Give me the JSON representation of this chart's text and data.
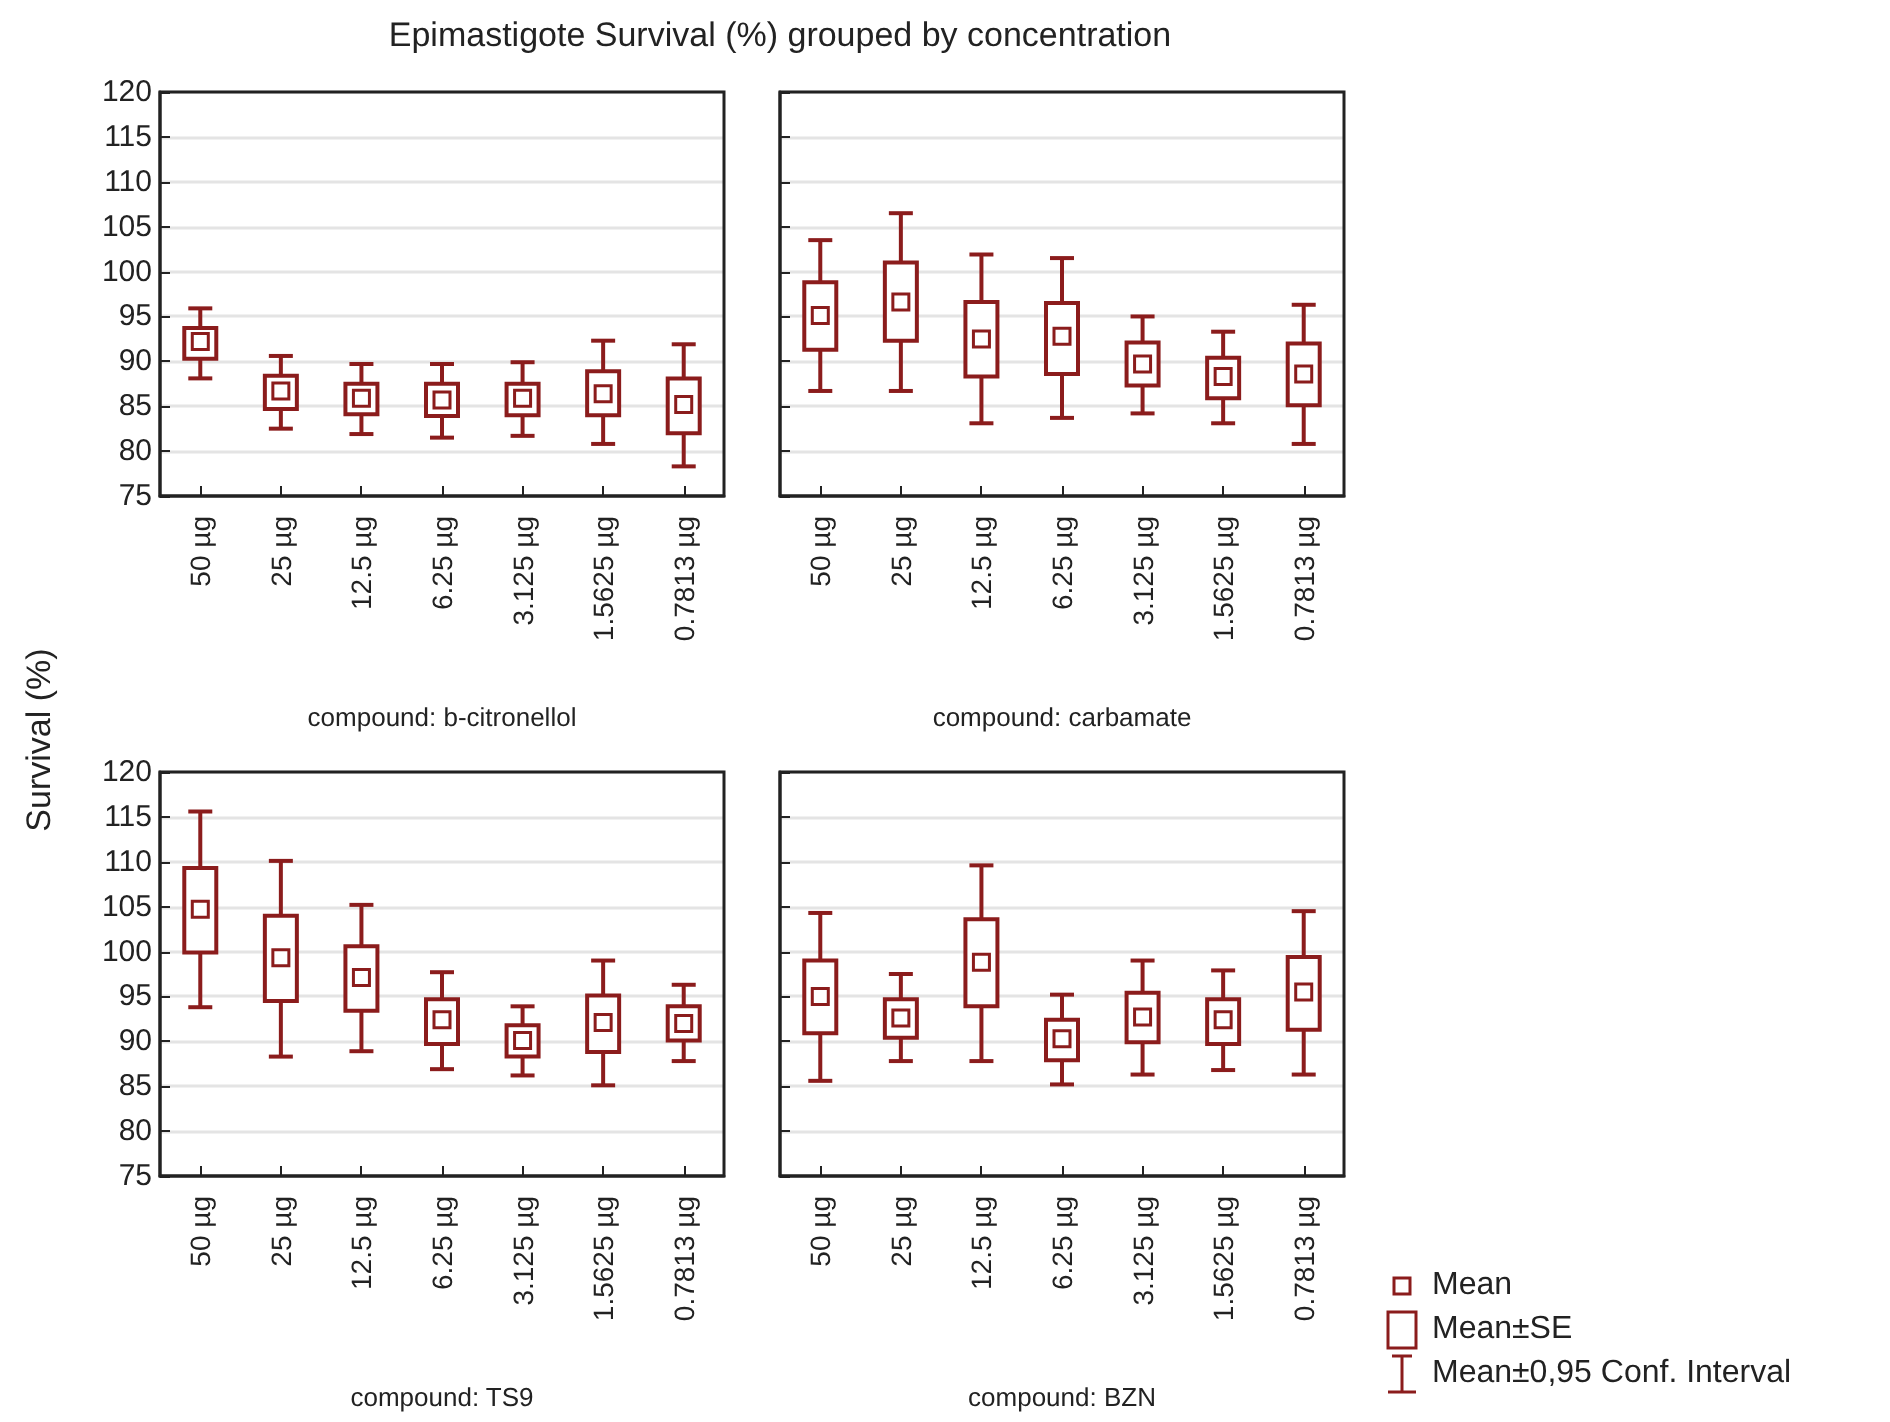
{
  "chart_data": [
    {
      "type": "box",
      "title": "Epimastigote Survival (%) grouped by concentration",
      "ylabel": "Survival (%)",
      "xlabel": "compound: b-citronellol",
      "categories": [
        "50 µg",
        "25 µg",
        "12.5 µg",
        "6.25 µg",
        "3.125 µg",
        "1.5625 µg",
        "0.7813 µg"
      ],
      "color": "#8b1c1c",
      "ylim": [
        75,
        120
      ],
      "yticks": [
        75,
        80,
        85,
        90,
        95,
        100,
        105,
        110,
        115,
        120
      ],
      "grid": "y",
      "boxes": [
        {
          "low": 88.1,
          "q1": 90.3,
          "median": 92.2,
          "q3": 93.7,
          "high": 95.9
        },
        {
          "low": 82.5,
          "q1": 84.7,
          "median": 86.7,
          "q3": 88.4,
          "high": 90.6
        },
        {
          "low": 81.9,
          "q1": 84.1,
          "median": 85.9,
          "q3": 87.5,
          "high": 89.7
        },
        {
          "low": 81.5,
          "q1": 83.9,
          "median": 85.7,
          "q3": 87.5,
          "high": 89.7
        },
        {
          "low": 81.7,
          "q1": 84.0,
          "median": 85.9,
          "q3": 87.5,
          "high": 89.9
        },
        {
          "low": 80.8,
          "q1": 84.0,
          "median": 86.4,
          "q3": 88.9,
          "high": 92.3
        },
        {
          "low": 78.3,
          "q1": 82.0,
          "median": 85.2,
          "q3": 88.1,
          "high": 91.9
        }
      ]
    },
    {
      "type": "box",
      "xlabel": "compound: carbamate",
      "categories": [
        "50 µg",
        "25 µg",
        "12.5 µg",
        "6.25 µg",
        "3.125 µg",
        "1.5625 µg",
        "0.7813 µg"
      ],
      "color": "#8b1c1c",
      "ylim": [
        75,
        120
      ],
      "yticks": [
        75,
        80,
        85,
        90,
        95,
        100,
        105,
        110,
        115,
        120
      ],
      "grid": "y",
      "tick_labels": "x",
      "boxes": [
        {
          "low": 86.7,
          "q1": 91.3,
          "median": 95.1,
          "q3": 98.8,
          "high": 103.5
        },
        {
          "low": 86.7,
          "q1": 92.3,
          "median": 96.6,
          "q3": 101.0,
          "high": 106.5
        },
        {
          "low": 83.1,
          "q1": 88.3,
          "median": 92.5,
          "q3": 96.6,
          "high": 101.9
        },
        {
          "low": 83.7,
          "q1": 88.6,
          "median": 92.8,
          "q3": 96.5,
          "high": 101.5
        },
        {
          "low": 84.2,
          "q1": 87.3,
          "median": 89.7,
          "q3": 92.1,
          "high": 95.0
        },
        {
          "low": 83.1,
          "q1": 85.9,
          "median": 88.3,
          "q3": 90.4,
          "high": 93.3
        },
        {
          "low": 80.8,
          "q1": 85.1,
          "median": 88.6,
          "q3": 92.0,
          "high": 96.3
        }
      ]
    },
    {
      "type": "box",
      "xlabel": "compound: TS9",
      "categories": [
        "50 µg",
        "25 µg",
        "12.5 µg",
        "6.25 µg",
        "3.125 µg",
        "1.5625 µg",
        "0.7813 µg"
      ],
      "color": "#8b1c1c",
      "ylim": [
        75,
        120
      ],
      "yticks": [
        75,
        80,
        85,
        90,
        95,
        100,
        105,
        110,
        115,
        120
      ],
      "grid": "y",
      "boxes": [
        {
          "low": 93.8,
          "q1": 99.9,
          "median": 104.7,
          "q3": 109.3,
          "high": 115.6
        },
        {
          "low": 88.3,
          "q1": 94.5,
          "median": 99.3,
          "q3": 104.0,
          "high": 110.1
        },
        {
          "low": 88.9,
          "q1": 93.4,
          "median": 97.1,
          "q3": 100.6,
          "high": 105.2
        },
        {
          "low": 86.9,
          "q1": 89.7,
          "median": 92.4,
          "q3": 94.7,
          "high": 97.7
        },
        {
          "low": 86.2,
          "q1": 88.3,
          "median": 90.1,
          "q3": 91.8,
          "high": 93.9
        },
        {
          "low": 85.1,
          "q1": 88.8,
          "median": 92.1,
          "q3": 95.1,
          "high": 99.0
        },
        {
          "low": 87.8,
          "q1": 90.1,
          "median": 92.0,
          "q3": 93.9,
          "high": 96.3
        }
      ]
    },
    {
      "type": "box",
      "xlabel": "compound: BZN",
      "categories": [
        "50 µg",
        "25 µg",
        "12.5 µg",
        "6.25 µg",
        "3.125 µg",
        "1.5625 µg",
        "0.7813 µg"
      ],
      "color": "#8b1c1c",
      "ylim": [
        75,
        120
      ],
      "yticks": [
        75,
        80,
        85,
        90,
        95,
        100,
        105,
        110,
        115,
        120
      ],
      "grid": "y",
      "tick_labels": "x",
      "annotations": [
        "Mean",
        "Mean±SE",
        "Mean±0,95 Conf. Interval"
      ],
      "boxes": [
        {
          "low": 85.6,
          "q1": 90.9,
          "median": 95.0,
          "q3": 99.0,
          "high": 104.3
        },
        {
          "low": 87.8,
          "q1": 90.4,
          "median": 92.6,
          "q3": 94.7,
          "high": 97.5
        },
        {
          "low": 87.8,
          "q1": 93.9,
          "median": 98.8,
          "q3": 103.6,
          "high": 109.6
        },
        {
          "low": 85.2,
          "q1": 87.9,
          "median": 90.3,
          "q3": 92.4,
          "high": 95.2
        },
        {
          "low": 86.3,
          "q1": 89.9,
          "median": 92.7,
          "q3": 95.4,
          "high": 99.0
        },
        {
          "low": 86.8,
          "q1": 89.7,
          "median": 92.4,
          "q3": 94.7,
          "high": 97.9
        },
        {
          "low": 86.3,
          "q1": 91.3,
          "median": 95.5,
          "q3": 99.4,
          "high": 104.5
        }
      ]
    }
  ]
}
